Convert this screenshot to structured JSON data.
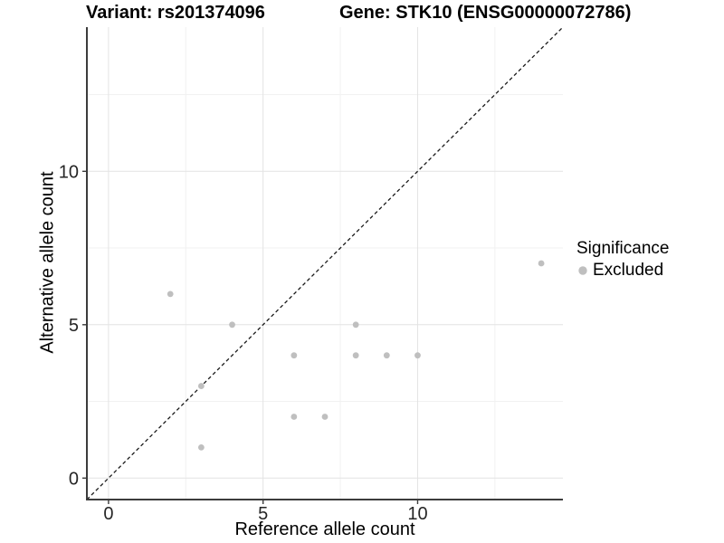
{
  "chart_data": {
    "type": "scatter",
    "title_left": "Variant: rs201374096",
    "title_right": "Gene: STK10 (ENSG00000072786)",
    "xlabel": "Reference allele count",
    "ylabel": "Alternative allele count",
    "xlim": [
      -0.7,
      14.7
    ],
    "ylim": [
      -0.7,
      14.7
    ],
    "x_ticks": [
      0,
      5,
      10
    ],
    "y_ticks": [
      0,
      5,
      10
    ],
    "x_minor_ticks": [
      2.5,
      7.5,
      12.5
    ],
    "y_minor_ticks": [
      2.5,
      7.5,
      12.5
    ],
    "grid": true,
    "legend_position": "right",
    "series": [
      {
        "name": "Excluded",
        "color": "#bfbfbf",
        "points": [
          [
            2,
            6
          ],
          [
            3,
            1
          ],
          [
            3,
            3
          ],
          [
            4,
            5
          ],
          [
            6,
            2
          ],
          [
            6,
            4
          ],
          [
            7,
            2
          ],
          [
            8,
            4
          ],
          [
            8,
            5
          ],
          [
            9,
            4
          ],
          [
            10,
            4
          ],
          [
            14,
            7
          ]
        ]
      }
    ],
    "reference_line": {
      "type": "identity-diagonal",
      "equation": "y = x",
      "style": "dashed",
      "color": "#1a1a1a"
    },
    "legend": {
      "title": "Significance",
      "items": [
        {
          "label": "Excluded",
          "color": "#bfbfbf"
        }
      ]
    },
    "colors": {
      "grid_major": "#e3e3e3",
      "grid_minor": "#f1f1f1",
      "axis": "#3c3c3c",
      "tick_text": "#262626"
    }
  }
}
